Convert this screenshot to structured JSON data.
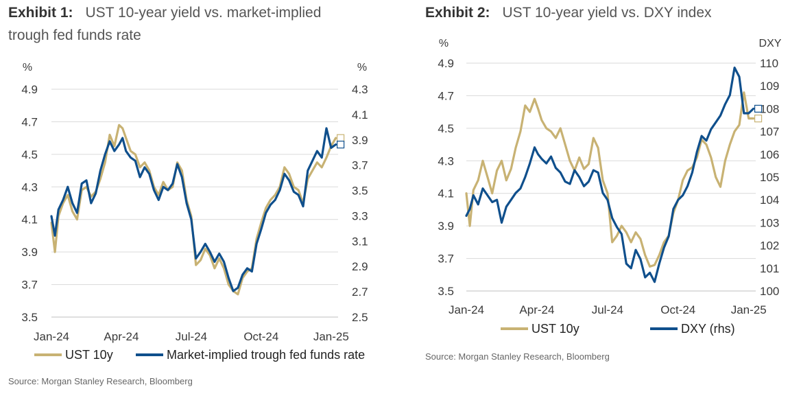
{
  "charts": [
    {
      "exhibit": "Exhibit 1:",
      "title_line1": "UST 10-year yield vs. market-implied",
      "title_line2": "trough fed funds rate",
      "source": "Source: Morgan Stanley Research, Bloomberg"
    },
    {
      "exhibit": "Exhibit 2:",
      "title_line1": "UST 10-year yield vs. DXY index",
      "title_line2": "",
      "source": "Source: Morgan Stanley Research, Bloomberg"
    }
  ],
  "colors": {
    "ust": "#c8b273",
    "navy": "#0f4f8c",
    "grid": "#d9d9d9",
    "text": "#3a3a3a"
  },
  "chart_data": [
    {
      "type": "line",
      "left_unit": "%",
      "right_unit": "%",
      "left_axis": {
        "min": 3.5,
        "max": 4.9,
        "ticks": [
          3.5,
          3.7,
          3.9,
          4.1,
          4.3,
          4.5,
          4.7,
          4.9
        ]
      },
      "right_axis": {
        "min": 2.5,
        "max": 4.3,
        "ticks": [
          2.5,
          2.7,
          2.9,
          3.1,
          3.3,
          3.5,
          3.7,
          3.9,
          4.1,
          4.3
        ]
      },
      "x_ticks": [
        "Jan-24",
        "Apr-24",
        "Jul-24",
        "Oct-24",
        "Jan-25"
      ],
      "x_tick_pos": [
        0,
        3,
        6,
        9,
        12
      ],
      "x_range": [
        0,
        12.3
      ],
      "grid": true,
      "legend_position": "bottom",
      "series": [
        {
          "name": "UST 10y",
          "color_key": "ust",
          "axis": "left",
          "x": [
            0,
            0.15,
            0.3,
            0.5,
            0.7,
            0.9,
            1.1,
            1.3,
            1.5,
            1.7,
            1.9,
            2.1,
            2.3,
            2.5,
            2.7,
            2.9,
            3.05,
            3.2,
            3.4,
            3.6,
            3.8,
            4.0,
            4.2,
            4.4,
            4.6,
            4.8,
            5.0,
            5.2,
            5.4,
            5.6,
            5.8,
            6.0,
            6.2,
            6.4,
            6.6,
            6.8,
            7.0,
            7.2,
            7.4,
            7.6,
            7.8,
            8.0,
            8.2,
            8.4,
            8.6,
            8.8,
            9.0,
            9.2,
            9.4,
            9.6,
            9.8,
            10.0,
            10.2,
            10.4,
            10.6,
            10.8,
            11.0,
            11.2,
            11.4,
            11.6,
            11.8,
            12.0,
            12.2
          ],
          "y": [
            4.08,
            3.9,
            4.12,
            4.2,
            4.25,
            4.15,
            4.1,
            4.28,
            4.3,
            4.24,
            4.27,
            4.35,
            4.45,
            4.62,
            4.55,
            4.68,
            4.66,
            4.6,
            4.52,
            4.5,
            4.42,
            4.45,
            4.4,
            4.3,
            4.25,
            4.33,
            4.28,
            4.3,
            4.45,
            4.4,
            4.22,
            4.12,
            3.82,
            3.85,
            3.92,
            3.88,
            3.8,
            3.86,
            3.8,
            3.7,
            3.66,
            3.64,
            3.74,
            3.78,
            3.8,
            3.98,
            4.08,
            4.17,
            4.22,
            4.25,
            4.3,
            4.42,
            4.38,
            4.3,
            4.28,
            4.2,
            4.35,
            4.4,
            4.45,
            4.42,
            4.48,
            4.55,
            4.6
          ]
        },
        {
          "name": "Market-implied trough fed funds rate",
          "color_key": "navy",
          "axis": "left",
          "x": [
            0,
            0.15,
            0.3,
            0.5,
            0.7,
            0.9,
            1.1,
            1.3,
            1.5,
            1.7,
            1.9,
            2.1,
            2.3,
            2.5,
            2.7,
            2.9,
            3.05,
            3.2,
            3.4,
            3.6,
            3.8,
            4.0,
            4.2,
            4.4,
            4.6,
            4.8,
            5.0,
            5.2,
            5.4,
            5.6,
            5.8,
            6.0,
            6.2,
            6.4,
            6.6,
            6.8,
            7.0,
            7.2,
            7.4,
            7.6,
            7.8,
            8.0,
            8.2,
            8.4,
            8.6,
            8.8,
            9.0,
            9.2,
            9.4,
            9.6,
            9.8,
            10.0,
            10.2,
            10.4,
            10.6,
            10.8,
            11.0,
            11.2,
            11.4,
            11.6,
            11.8,
            12.0,
            12.2
          ],
          "y": [
            4.12,
            4.0,
            4.16,
            4.22,
            4.3,
            4.2,
            4.14,
            4.32,
            4.34,
            4.2,
            4.26,
            4.4,
            4.5,
            4.58,
            4.52,
            4.56,
            4.6,
            4.52,
            4.48,
            4.46,
            4.36,
            4.42,
            4.38,
            4.28,
            4.22,
            4.3,
            4.28,
            4.32,
            4.44,
            4.36,
            4.2,
            4.1,
            3.86,
            3.9,
            3.95,
            3.9,
            3.84,
            3.89,
            3.84,
            3.74,
            3.66,
            3.68,
            3.76,
            3.8,
            3.78,
            3.95,
            4.04,
            4.14,
            4.19,
            4.22,
            4.28,
            4.38,
            4.34,
            4.27,
            4.25,
            4.18,
            4.4,
            4.46,
            4.52,
            4.48,
            4.66,
            4.54,
            4.56
          ]
        }
      ]
    },
    {
      "type": "line",
      "left_unit": "%",
      "right_unit": "DXY",
      "left_axis": {
        "min": 3.5,
        "max": 4.9,
        "ticks": [
          3.5,
          3.7,
          3.9,
          4.1,
          4.3,
          4.5,
          4.7,
          4.9
        ]
      },
      "right_axis": {
        "min": 100,
        "max": 110,
        "ticks": [
          100,
          101,
          102,
          103,
          104,
          105,
          106,
          107,
          108,
          109,
          110
        ]
      },
      "x_ticks": [
        "Jan-24",
        "Apr-24",
        "Jul-24",
        "Oct-24",
        "Jan-25"
      ],
      "x_tick_pos": [
        0,
        3,
        6,
        9,
        12
      ],
      "x_range": [
        0,
        12.3
      ],
      "grid": true,
      "legend_position": "bottom",
      "series": [
        {
          "name": "UST 10y",
          "color_key": "ust",
          "axis": "left",
          "x": [
            0,
            0.15,
            0.3,
            0.5,
            0.7,
            0.9,
            1.1,
            1.3,
            1.5,
            1.7,
            1.9,
            2.1,
            2.3,
            2.5,
            2.7,
            2.9,
            3.05,
            3.2,
            3.4,
            3.6,
            3.8,
            4.0,
            4.2,
            4.4,
            4.6,
            4.8,
            5.0,
            5.2,
            5.4,
            5.6,
            5.8,
            6.0,
            6.2,
            6.4,
            6.6,
            6.8,
            7.0,
            7.2,
            7.4,
            7.6,
            7.8,
            8.0,
            8.2,
            8.4,
            8.6,
            8.8,
            9.0,
            9.2,
            9.4,
            9.6,
            9.8,
            10.0,
            10.2,
            10.4,
            10.6,
            10.8,
            11.0,
            11.2,
            11.4,
            11.6,
            11.8,
            12.0,
            12.2
          ],
          "y": [
            4.1,
            3.9,
            4.12,
            4.18,
            4.3,
            4.2,
            4.1,
            4.24,
            4.3,
            4.18,
            4.25,
            4.38,
            4.48,
            4.64,
            4.6,
            4.68,
            4.62,
            4.55,
            4.5,
            4.48,
            4.44,
            4.5,
            4.4,
            4.3,
            4.24,
            4.32,
            4.25,
            4.28,
            4.44,
            4.38,
            4.18,
            4.1,
            3.8,
            3.84,
            3.9,
            3.86,
            3.8,
            3.86,
            3.82,
            3.72,
            3.65,
            3.66,
            3.72,
            3.8,
            3.84,
            3.98,
            4.06,
            4.18,
            4.24,
            4.26,
            4.32,
            4.43,
            4.4,
            4.32,
            4.2,
            4.14,
            4.3,
            4.4,
            4.48,
            4.52,
            4.72,
            4.56,
            4.56
          ]
        },
        {
          "name": "DXY (rhs)",
          "color_key": "navy",
          "axis": "right",
          "x": [
            0,
            0.15,
            0.3,
            0.5,
            0.7,
            0.9,
            1.1,
            1.3,
            1.5,
            1.7,
            1.9,
            2.1,
            2.3,
            2.5,
            2.7,
            2.9,
            3.05,
            3.2,
            3.4,
            3.6,
            3.8,
            4.0,
            4.2,
            4.4,
            4.6,
            4.8,
            5.0,
            5.2,
            5.4,
            5.6,
            5.8,
            6.0,
            6.2,
            6.4,
            6.6,
            6.8,
            7.0,
            7.2,
            7.4,
            7.6,
            7.8,
            8.0,
            8.2,
            8.4,
            8.6,
            8.8,
            9.0,
            9.2,
            9.4,
            9.6,
            9.8,
            10.0,
            10.2,
            10.4,
            10.6,
            10.8,
            11.0,
            11.2,
            11.4,
            11.6,
            11.8,
            12.0,
            12.2
          ],
          "y": [
            103.3,
            103.6,
            104.2,
            103.8,
            104.5,
            104.2,
            103.9,
            104.0,
            103.0,
            103.7,
            104.0,
            104.3,
            104.5,
            105.0,
            105.6,
            106.3,
            106.0,
            105.8,
            105.6,
            105.9,
            105.4,
            105.2,
            104.8,
            104.7,
            105.3,
            105.0,
            104.6,
            104.8,
            105.3,
            105.2,
            104.3,
            104.0,
            103.2,
            102.8,
            102.5,
            101.2,
            101.0,
            101.8,
            101.4,
            100.6,
            100.8,
            100.4,
            101.2,
            101.9,
            102.4,
            103.6,
            104.0,
            104.2,
            104.6,
            105.2,
            106.1,
            106.8,
            106.6,
            107.1,
            107.4,
            107.7,
            108.2,
            108.6,
            109.8,
            109.4,
            107.8,
            107.8,
            108.0
          ]
        }
      ]
    }
  ]
}
